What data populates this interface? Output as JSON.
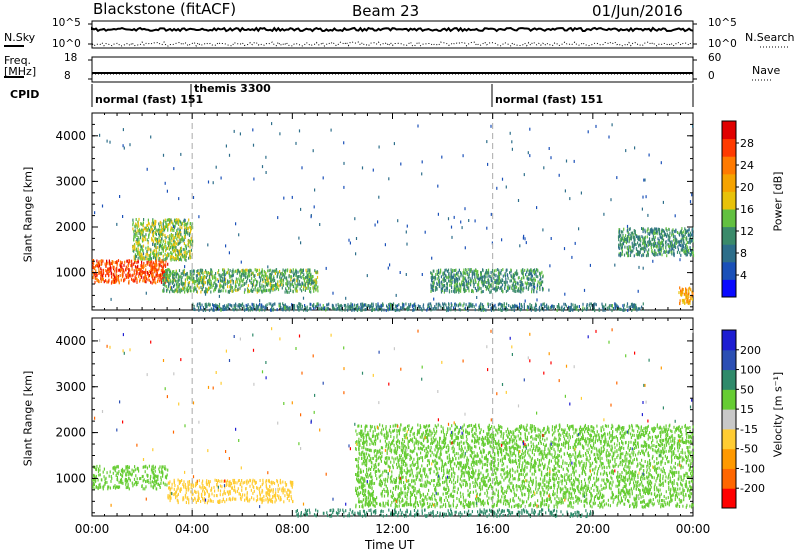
{
  "header": {
    "station": "Blackstone (fitACF)",
    "beam": "Beam 23",
    "date": "01/Jun/2016"
  },
  "panels": {
    "noise": {
      "left_label": "N.Sky",
      "right_label": "N.Search",
      "left_ticks": [
        "10^5",
        "10^0"
      ],
      "right_ticks": [
        "10^5",
        "10^0"
      ]
    },
    "freq": {
      "left_label_1": "Freq.",
      "left_label_2": "[MHz]",
      "right_label": "Nave",
      "left_ticks": [
        "18",
        "8"
      ],
      "right_ticks": [
        "60",
        "0"
      ]
    },
    "cpid": {
      "label": "CPID",
      "modes": [
        "normal (fast) 151",
        "themis 3300",
        "normal (fast) 151"
      ]
    },
    "power": {
      "ylabel": "Slant Range [km]",
      "colorbar_label": "Power [dB]",
      "colorbar_ticks": [
        "28",
        "24",
        "20",
        "16",
        "12",
        "8",
        "4"
      ]
    },
    "velocity": {
      "ylabel": "Slant Range [km]",
      "colorbar_label": "Velocity [m s⁻¹]",
      "colorbar_ticks": [
        "200",
        "100",
        "50",
        "15",
        "-15",
        "-50",
        "-100",
        "-200"
      ]
    },
    "xlabel": "Time UT"
  },
  "colors": {
    "power_scale": [
      "#0a0aff",
      "#1a50b8",
      "#2d6e8a",
      "#3a8a6a",
      "#62c040",
      "#e8c20a",
      "#f5a300",
      "#ff7a00",
      "#ff3a00",
      "#e00000"
    ],
    "velocity_scale": [
      "#1e1ed2",
      "#2b4fb3",
      "#2f8a6a",
      "#66cc33",
      "#c8c8c8",
      "#ffcc33",
      "#ff9900",
      "#ff6600",
      "#ff0000"
    ],
    "mode_marker": "#aaaaaa"
  },
  "chart_data": [
    {
      "type": "heatmap",
      "title": "Power",
      "xlabel": "Time UT",
      "ylabel": "Slant Range [km]",
      "x_ticks": [
        "00:00",
        "04:00",
        "08:00",
        "12:00",
        "16:00",
        "20:00",
        "00:00"
      ],
      "y_ticks": [
        1000,
        2000,
        3000,
        4000
      ],
      "xlim": [
        0,
        24
      ],
      "ylim": [
        180,
        4500
      ],
      "colorbar_range": [
        0,
        30
      ],
      "mode_changes_hours": [
        4.0,
        16.0
      ],
      "features": [
        {
          "t_start": 0.0,
          "t_end": 3.0,
          "range_min": 800,
          "range_max": 1300,
          "power": 26
        },
        {
          "t_start": 1.6,
          "t_end": 4.0,
          "range_min": 1300,
          "range_max": 2200,
          "power": 14
        },
        {
          "t_start": 2.8,
          "t_end": 9.0,
          "range_min": 600,
          "range_max": 1100,
          "power": 12
        },
        {
          "t_start": 4.0,
          "t_end": 22.0,
          "range_min": 200,
          "range_max": 350,
          "power": 8
        },
        {
          "t_start": 13.5,
          "t_end": 18.0,
          "range_min": 600,
          "range_max": 1100,
          "power": 10
        },
        {
          "t_start": 21.0,
          "t_end": 24.0,
          "range_min": 1400,
          "range_max": 2000,
          "power": 10
        },
        {
          "t_start": 23.4,
          "t_end": 24.0,
          "range_min": 350,
          "range_max": 700,
          "power": 20
        }
      ]
    },
    {
      "type": "heatmap",
      "title": "Velocity",
      "xlabel": "Time UT",
      "ylabel": "Slant Range [km]",
      "x_ticks": [
        "00:00",
        "04:00",
        "08:00",
        "12:00",
        "16:00",
        "20:00",
        "00:00"
      ],
      "y_ticks": [
        1000,
        2000,
        3000,
        4000
      ],
      "xlim": [
        0,
        24
      ],
      "ylim": [
        180,
        4500
      ],
      "colorbar_range": [
        -200,
        200
      ],
      "features": [
        {
          "t_start": 0.0,
          "t_end": 3.0,
          "range_min": 800,
          "range_max": 1300,
          "velocity": 0
        },
        {
          "t_start": 3.0,
          "t_end": 8.0,
          "range_min": 500,
          "range_max": 1000,
          "velocity": -60
        },
        {
          "t_start": 8.0,
          "t_end": 20.0,
          "range_min": 200,
          "range_max": 350,
          "velocity": 30
        },
        {
          "t_start": 10.5,
          "t_end": 24.0,
          "range_min": 400,
          "range_max": 2200,
          "velocity": 0
        }
      ]
    }
  ]
}
